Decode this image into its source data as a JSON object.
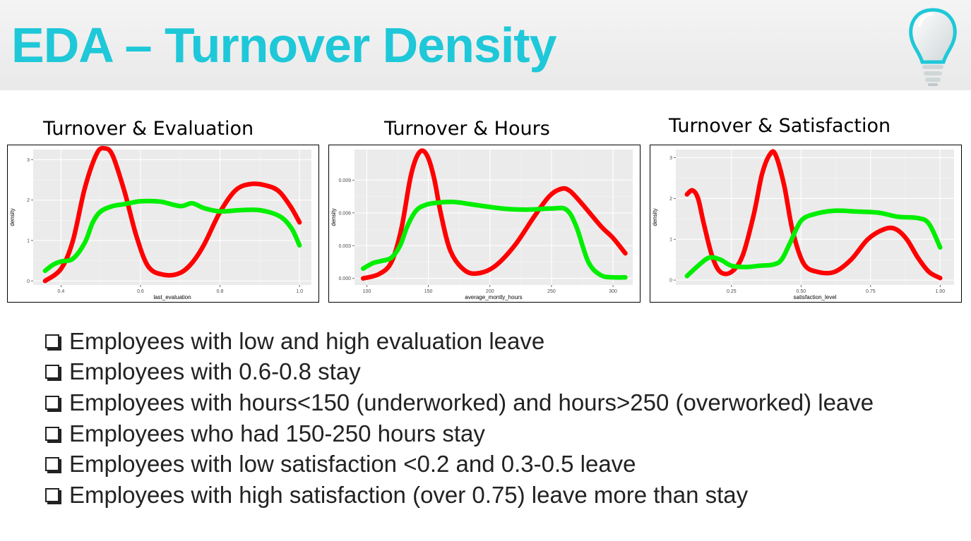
{
  "header": {
    "title": "EDA – Turnover Density",
    "title_color": "#1ec8d8"
  },
  "logo": {
    "icon": "lightbulb-icon"
  },
  "colors": {
    "left": "#ff0000",
    "stayed": "#00ee00",
    "panel": "#ebebeb",
    "grid": "#ffffff"
  },
  "chart_data": [
    {
      "type": "line",
      "title": "Turnover & Evaluation",
      "xlabel": "last_evaluation",
      "ylabel": "density",
      "xlim": [
        0.33,
        1.03
      ],
      "ylim": [
        -0.1,
        3.25
      ],
      "xticks": [
        0.4,
        0.6,
        0.8,
        1.0
      ],
      "xtick_labels": [
        "0.4",
        "0.6",
        "0.8",
        "1.0"
      ],
      "yticks": [
        0,
        1,
        2,
        3
      ],
      "ytick_labels": [
        "0",
        "1",
        "2",
        "3"
      ],
      "grid": true,
      "series": [
        {
          "color": "#ff0000",
          "x": [
            0.36,
            0.4,
            0.43,
            0.46,
            0.49,
            0.51,
            0.53,
            0.56,
            0.59,
            0.62,
            0.66,
            0.7,
            0.73,
            0.76,
            0.8,
            0.84,
            0.88,
            0.92,
            0.95,
            0.98,
            1.0
          ],
          "y": [
            0.0,
            0.3,
            1.0,
            2.3,
            3.15,
            3.28,
            3.1,
            2.2,
            1.1,
            0.35,
            0.15,
            0.2,
            0.45,
            0.9,
            1.7,
            2.25,
            2.4,
            2.35,
            2.2,
            1.8,
            1.45
          ]
        },
        {
          "color": "#00ee00",
          "x": [
            0.36,
            0.38,
            0.4,
            0.43,
            0.46,
            0.48,
            0.5,
            0.53,
            0.56,
            0.6,
            0.65,
            0.7,
            0.73,
            0.76,
            0.8,
            0.85,
            0.9,
            0.95,
            0.98,
            1.0
          ],
          "y": [
            0.25,
            0.4,
            0.48,
            0.55,
            0.95,
            1.45,
            1.72,
            1.85,
            1.9,
            1.97,
            1.96,
            1.85,
            1.92,
            1.8,
            1.72,
            1.75,
            1.75,
            1.6,
            1.3,
            0.88
          ]
        }
      ]
    },
    {
      "type": "line",
      "title": "Turnover & Hours",
      "xlabel": "average_montly_hours",
      "ylabel": "density",
      "xlim": [
        90,
        316
      ],
      "ylim": [
        -0.0006,
        0.0118
      ],
      "xticks": [
        100,
        150,
        200,
        250,
        300
      ],
      "xtick_labels": [
        "100",
        "150",
        "200",
        "250",
        "300"
      ],
      "yticks": [
        0,
        0.003,
        0.006,
        0.009
      ],
      "ytick_labels": [
        "0.000",
        "0.003",
        "0.006",
        "0.009"
      ],
      "grid": true,
      "series": [
        {
          "color": "#ff0000",
          "x": [
            97,
            110,
            120,
            128,
            135,
            140,
            145,
            150,
            155,
            160,
            168,
            180,
            192,
            205,
            220,
            235,
            248,
            258,
            265,
            275,
            290,
            300,
            310
          ],
          "y": [
            0.0,
            0.0004,
            0.0015,
            0.0045,
            0.009,
            0.011,
            0.0117,
            0.011,
            0.009,
            0.006,
            0.0025,
            0.0007,
            0.0005,
            0.0012,
            0.003,
            0.0055,
            0.0075,
            0.0082,
            0.008,
            0.0068,
            0.0048,
            0.0037,
            0.0023
          ]
        },
        {
          "color": "#00ee00",
          "x": [
            97,
            105,
            112,
            120,
            127,
            133,
            140,
            147,
            155,
            170,
            190,
            210,
            230,
            250,
            262,
            270,
            280,
            290,
            300,
            310
          ],
          "y": [
            0.0009,
            0.0014,
            0.0016,
            0.0019,
            0.003,
            0.0048,
            0.0062,
            0.0067,
            0.0069,
            0.007,
            0.0067,
            0.0064,
            0.0063,
            0.0064,
            0.0063,
            0.0048,
            0.0015,
            0.0003,
            0.0001,
            0.0001
          ]
        }
      ]
    },
    {
      "type": "line",
      "title": "Turnover & Satisfaction",
      "xlabel": "satisfaction_level",
      "ylabel": "density",
      "xlim": [
        0.05,
        1.05
      ],
      "ylim": [
        -0.12,
        3.2
      ],
      "xticks": [
        0.25,
        0.5,
        0.75,
        1.0
      ],
      "xtick_labels": [
        "0.25",
        "0.50",
        "0.75",
        "1.00"
      ],
      "yticks": [
        0,
        1,
        2,
        3
      ],
      "ytick_labels": [
        "0",
        "1",
        "2",
        "3"
      ],
      "grid": true,
      "series": [
        {
          "color": "#ff0000",
          "x": [
            0.09,
            0.11,
            0.13,
            0.15,
            0.18,
            0.21,
            0.25,
            0.29,
            0.33,
            0.36,
            0.39,
            0.41,
            0.44,
            0.47,
            0.51,
            0.56,
            0.62,
            0.68,
            0.74,
            0.8,
            0.84,
            0.88,
            0.92,
            0.96,
            1.0
          ],
          "y": [
            2.1,
            2.2,
            2.0,
            1.4,
            0.6,
            0.2,
            0.2,
            0.6,
            1.6,
            2.6,
            3.1,
            3.05,
            2.3,
            1.2,
            0.4,
            0.2,
            0.2,
            0.5,
            1.0,
            1.25,
            1.25,
            1.0,
            0.55,
            0.2,
            0.05
          ]
        },
        {
          "color": "#00ee00",
          "x": [
            0.09,
            0.13,
            0.17,
            0.21,
            0.25,
            0.3,
            0.35,
            0.4,
            0.43,
            0.46,
            0.5,
            0.55,
            0.62,
            0.7,
            0.78,
            0.85,
            0.92,
            0.96,
            1.0
          ],
          "y": [
            0.1,
            0.35,
            0.55,
            0.5,
            0.35,
            0.32,
            0.35,
            0.38,
            0.5,
            0.9,
            1.45,
            1.62,
            1.7,
            1.68,
            1.65,
            1.55,
            1.52,
            1.38,
            0.8
          ]
        }
      ]
    }
  ],
  "bullets": [
    "Employees with low and high evaluation leave",
    "Employees with 0.6-0.8 stay",
    "Employees with hours<150 (underworked) and hours>250 (overworked) leave",
    "Employees who had 150-250 hours stay",
    "Employees with low satisfaction <0.2 and 0.3-0.5 leave",
    "Employees with high satisfaction (over 0.75) leave more than stay"
  ]
}
